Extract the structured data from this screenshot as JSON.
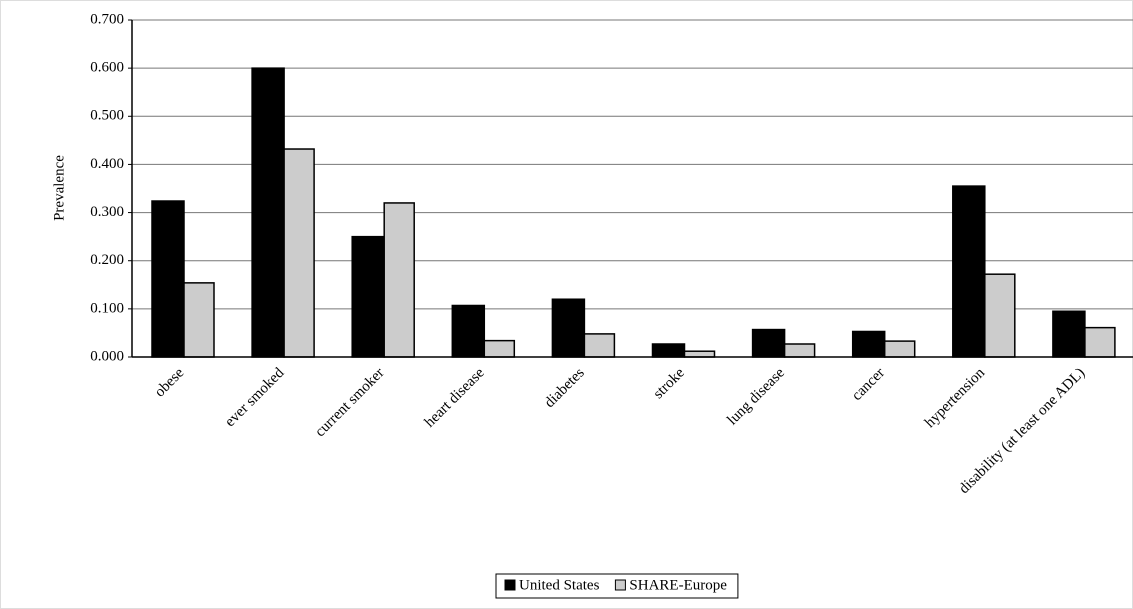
{
  "chart_data": {
    "type": "bar",
    "y_label": "Prevalence",
    "categories": [
      "obese",
      "ever smoked",
      "current smoker",
      "heart disease",
      "diabetes",
      "stroke",
      "lung disease",
      "cancer",
      "hypertension",
      "disability (at least one ADL)"
    ],
    "series": [
      {
        "name": "United States",
        "color": "#000000",
        "values": [
          0.324,
          0.6,
          0.25,
          0.107,
          0.12,
          0.027,
          0.057,
          0.053,
          0.355,
          0.095
        ]
      },
      {
        "name": "SHARE-Europe",
        "color": "#cccccc",
        "values": [
          0.154,
          0.432,
          0.32,
          0.034,
          0.048,
          0.012,
          0.027,
          0.033,
          0.172,
          0.061
        ]
      }
    ],
    "ylim": [
      0,
      0.7
    ],
    "yticks": [
      {
        "value": 0,
        "label": "0.000"
      },
      {
        "value": 0.1,
        "label": "0.100"
      },
      {
        "value": 0.2,
        "label": "0.200"
      },
      {
        "value": 0.3,
        "label": "0.300"
      },
      {
        "value": 0.4,
        "label": "0.400"
      },
      {
        "value": 0.5,
        "label": "0.500"
      },
      {
        "value": 0.6,
        "label": "0.600"
      },
      {
        "value": 0.7,
        "label": "0.700"
      }
    ],
    "grid": true,
    "legend": "bottom"
  }
}
